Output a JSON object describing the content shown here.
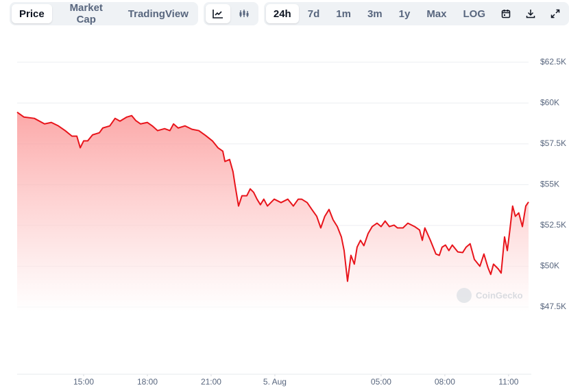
{
  "toolbar": {
    "views": [
      "Price",
      "Market Cap",
      "TradingView"
    ],
    "ranges": [
      "24h",
      "7d",
      "1m",
      "3m",
      "1y",
      "Max",
      "LOG"
    ]
  },
  "watermark": "CoinGecko",
  "chart_data": {
    "type": "area",
    "color": "#e8141b",
    "grid": true,
    "x": [
      11.87,
      12.19,
      12.68,
      13.16,
      13.48,
      13.81,
      14.13,
      14.45,
      14.68,
      14.84,
      15,
      15.19,
      15.42,
      15.74,
      15.9,
      16.23,
      16.48,
      16.71,
      17.03,
      17.26,
      17.45,
      17.68,
      18,
      18.23,
      18.48,
      18.81,
      19.06,
      19.23,
      19.45,
      19.77,
      20.1,
      20.42,
      20.74,
      21.06,
      21.32,
      21.55,
      21.65,
      21.87,
      22.03,
      22.13,
      22.29,
      22.45,
      22.68,
      22.84,
      23,
      23.16,
      23.32,
      23.48,
      23.65,
      23.81,
      23.97,
      24.29,
      24.61,
      24.87,
      25.1,
      25.26,
      25.52,
      25.74,
      25.97,
      26.16,
      26.35,
      26.55,
      26.74,
      26.94,
      27.13,
      27.26,
      27.42,
      27.58,
      27.74,
      27.87,
      28.03,
      28.19,
      28.39,
      28.58,
      28.81,
      29,
      29.19,
      29.39,
      29.61,
      29.77,
      30.03,
      30.26,
      30.58,
      30.81,
      30.94,
      31.06,
      31.32,
      31.58,
      31.74,
      31.87,
      32.03,
      32.19,
      32.35,
      32.61,
      32.84,
      33,
      33.19,
      33.39,
      33.65,
      33.84,
      34.03,
      34.16,
      34.29,
      34.52,
      34.65,
      34.81,
      34.94,
      35.06,
      35.19,
      35.32,
      35.48,
      35.65,
      35.81,
      35.94
    ],
    "values": [
      59440,
      59140,
      59060,
      58720,
      58810,
      58600,
      58310,
      57970,
      57970,
      57260,
      57680,
      57680,
      58050,
      58180,
      58470,
      58600,
      59060,
      58890,
      59140,
      59230,
      58930,
      58720,
      58810,
      58600,
      58310,
      58430,
      58310,
      58720,
      58470,
      58600,
      58390,
      58310,
      58010,
      57680,
      57260,
      57050,
      56420,
      56540,
      55790,
      54950,
      53690,
      54320,
      54320,
      54740,
      54530,
      54110,
      53770,
      54110,
      53690,
      53900,
      54110,
      53900,
      54110,
      53690,
      54110,
      54110,
      53900,
      53480,
      53060,
      52350,
      53060,
      53480,
      52850,
      52430,
      51800,
      50960,
      49080,
      50670,
      50130,
      51170,
      51590,
      51260,
      52010,
      52430,
      52640,
      52430,
      52770,
      52430,
      52520,
      52350,
      52350,
      52640,
      52430,
      52220,
      51590,
      52350,
      51590,
      50750,
      50670,
      51170,
      51300,
      50960,
      51300,
      50880,
      50840,
      51170,
      51380,
      50420,
      50000,
      50750,
      49920,
      49500,
      50130,
      49830,
      49580,
      51800,
      50960,
      52220,
      53690,
      53060,
      53270,
      52430,
      53690,
      53940
    ],
    "xlim": [
      11.87,
      35.94
    ],
    "xticks": [
      {
        "value": 15,
        "label": "15:00"
      },
      {
        "value": 18,
        "label": "18:00"
      },
      {
        "value": 21,
        "label": "21:00"
      },
      {
        "value": 24,
        "label": "5. Aug"
      },
      {
        "value": 29,
        "label": "05:00"
      },
      {
        "value": 32,
        "label": "08:00"
      },
      {
        "value": 35,
        "label": "11:00"
      }
    ],
    "ylim": [
      47500,
      63750
    ],
    "yticks": [
      {
        "value": 47500,
        "label": "$47.5K"
      },
      {
        "value": 50000,
        "label": "$50K"
      },
      {
        "value": 52500,
        "label": "$52.5K"
      },
      {
        "value": 55000,
        "label": "$55K"
      },
      {
        "value": 57500,
        "label": "$57.5K"
      },
      {
        "value": 60000,
        "label": "$60K"
      },
      {
        "value": 62500,
        "label": "$62.5K"
      }
    ]
  }
}
